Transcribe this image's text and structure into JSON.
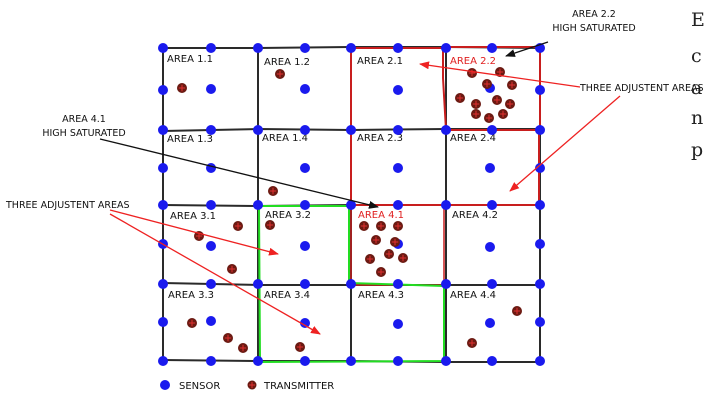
{
  "colors": {
    "grid": "#2a2a2a",
    "sensor": "#1a1aee",
    "transmitter_fill": "#6b1a12",
    "transmitter_cross": "#e03030",
    "red_region": "#c81e1e",
    "green_region": "#22dd22",
    "arrow_black": "#111111",
    "arrow_red": "#ee2222",
    "label_red": "#e02020"
  },
  "areas": [
    {
      "label": "AREA 1.1",
      "highlight": false
    },
    {
      "label": "AREA 1.2",
      "highlight": false
    },
    {
      "label": "AREA 2.1",
      "highlight": false
    },
    {
      "label": "AREA 2.2",
      "highlight": true
    },
    {
      "label": "AREA 1.3",
      "highlight": false
    },
    {
      "label": "AREA 1.4",
      "highlight": false
    },
    {
      "label": "AREA 2.3",
      "highlight": false
    },
    {
      "label": "AREA 2.4",
      "highlight": false
    },
    {
      "label": "AREA 3.1",
      "highlight": false
    },
    {
      "label": "AREA 3.2",
      "highlight": false
    },
    {
      "label": "AREA 4.1",
      "highlight": true
    },
    {
      "label": "AREA 4.2",
      "highlight": false
    },
    {
      "label": "AREA 3.3",
      "highlight": false
    },
    {
      "label": "AREA 3.4",
      "highlight": false
    },
    {
      "label": "AREA 4.3",
      "highlight": false
    },
    {
      "label": "AREA 4.4",
      "highlight": false
    }
  ],
  "annotations": {
    "area22_line1": "AREA 2.2",
    "area22_line2": "HIGH SATURATED",
    "area41_line1": "AREA 4.1",
    "area41_line2": "HIGH SATURATED",
    "adjacent_right": "THREE ADJUSTENT AREAS",
    "adjacent_left": "THREE ADJUSTENT AREAS"
  },
  "legend": {
    "sensor_label": "SENSOR",
    "transmitter_label": "TRANSMITTER"
  },
  "side_text": [
    "E",
    "c",
    "a",
    "n",
    "p"
  ]
}
